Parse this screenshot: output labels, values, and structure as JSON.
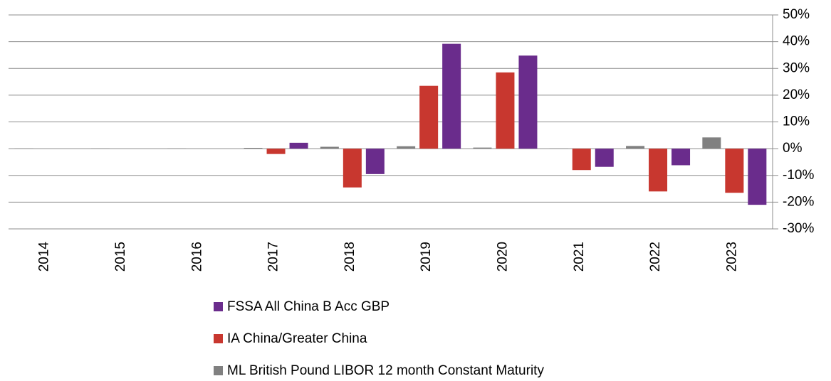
{
  "chart_data": {
    "type": "bar",
    "categories": [
      "2014",
      "2015",
      "2016",
      "2017",
      "2018",
      "2019",
      "2020",
      "2021",
      "2022",
      "2023"
    ],
    "series": [
      {
        "name": "ML British Pound LIBOR 12 month Constant Maturity",
        "color": "#808080",
        "values": [
          0.1,
          0.1,
          0.1,
          0.3,
          0.7,
          0.9,
          0.4,
          0.1,
          1.0,
          4.2
        ]
      },
      {
        "name": "IA China/Greater China",
        "color": "#c8372f",
        "values": [
          null,
          null,
          null,
          -2,
          -14.5,
          23.5,
          28.5,
          -8,
          -16,
          -16.5
        ]
      },
      {
        "name": "FSSA All China B Acc GBP",
        "color": "#6a2c8c",
        "values": [
          null,
          null,
          null,
          2.2,
          -9.5,
          39.2,
          34.8,
          -6.8,
          -6.2,
          -21
        ]
      }
    ],
    "legend_order": [
      "FSSA All China B Acc GBP",
      "IA China/Greater China",
      "ML British Pound LIBOR 12 month Constant Maturity"
    ],
    "ylim": [
      -30,
      50
    ],
    "yticks": [
      {
        "value": 50,
        "label": "50%"
      },
      {
        "value": 40,
        "label": "40%"
      },
      {
        "value": 30,
        "label": "30%"
      },
      {
        "value": 20,
        "label": "20%"
      },
      {
        "value": 10,
        "label": "10%"
      },
      {
        "value": 0,
        "label": "0%"
      },
      {
        "value": -10,
        "label": "-10%"
      },
      {
        "value": -20,
        "label": "-20%"
      },
      {
        "value": -30,
        "label": "-30%"
      }
    ],
    "grid": true,
    "y_axis_side": "right"
  }
}
